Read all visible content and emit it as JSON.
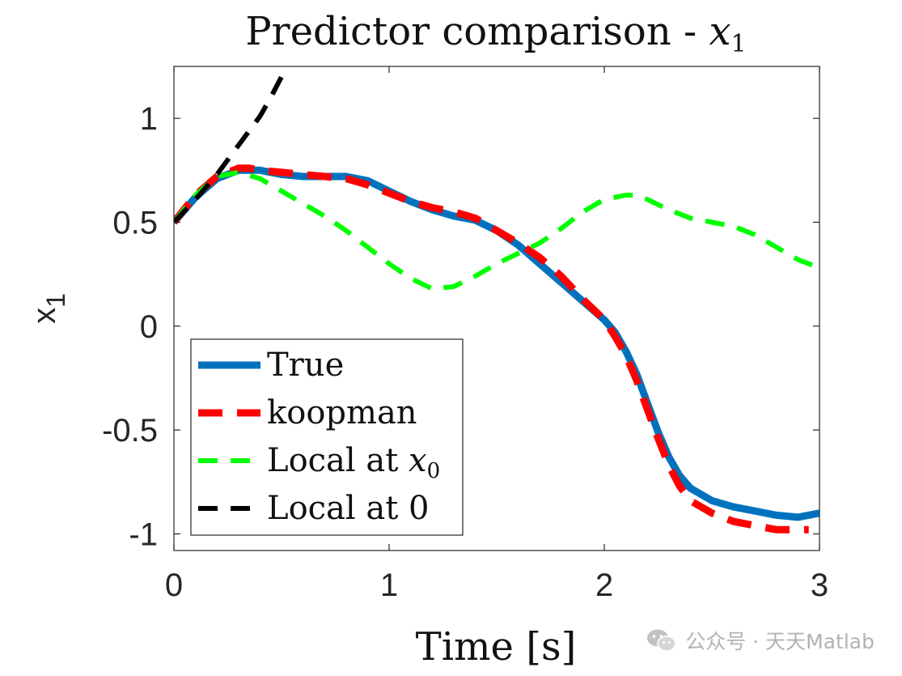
{
  "chart_data": {
    "type": "line",
    "title": "Predictor comparison - ",
    "title_math": "x",
    "title_math_sub": "1",
    "xlabel": "Time [s]",
    "ylabel": "x",
    "ylabel_sub": "1",
    "xlim": [
      0,
      3
    ],
    "ylim": [
      -1.08,
      1.25
    ],
    "xticks": [
      0,
      1,
      2,
      3
    ],
    "xtick_labels": [
      "0",
      "1",
      "2",
      "3"
    ],
    "yticks": [
      -1,
      -0.5,
      0,
      0.5,
      1
    ],
    "ytick_labels": [
      "-1",
      "-0.5",
      "0",
      "0.5",
      "1"
    ],
    "grid": false,
    "legend_position": "bottom-left",
    "series": [
      {
        "name": "True",
        "label": "True",
        "color": "#0072BD",
        "style": "solid",
        "x": [
          0,
          0.1,
          0.2,
          0.3,
          0.4,
          0.5,
          0.6,
          0.7,
          0.8,
          0.9,
          1.0,
          1.1,
          1.2,
          1.3,
          1.4,
          1.5,
          1.6,
          1.7,
          1.8,
          1.9,
          2.0,
          2.05,
          2.1,
          2.15,
          2.2,
          2.25,
          2.3,
          2.35,
          2.4,
          2.5,
          2.6,
          2.7,
          2.8,
          2.9,
          3.0
        ],
        "y": [
          0.5,
          0.62,
          0.71,
          0.75,
          0.75,
          0.73,
          0.72,
          0.72,
          0.72,
          0.7,
          0.65,
          0.6,
          0.56,
          0.53,
          0.51,
          0.46,
          0.39,
          0.3,
          0.21,
          0.12,
          0.03,
          -0.03,
          -0.12,
          -0.23,
          -0.37,
          -0.51,
          -0.63,
          -0.72,
          -0.78,
          -0.84,
          -0.87,
          -0.89,
          -0.91,
          -0.92,
          -0.9
        ]
      },
      {
        "name": "koopman",
        "label": "koopman",
        "color": "#FF0000",
        "style": "dashed",
        "x": [
          0,
          0.1,
          0.2,
          0.3,
          0.35,
          0.4,
          0.5,
          0.6,
          0.7,
          0.8,
          0.9,
          1.0,
          1.1,
          1.2,
          1.3,
          1.4,
          1.5,
          1.6,
          1.7,
          1.8,
          1.9,
          2.0,
          2.05,
          2.1,
          2.15,
          2.2,
          2.25,
          2.3,
          2.35,
          2.4,
          2.5,
          2.6,
          2.7,
          2.8,
          2.9,
          2.95
        ],
        "y": [
          0.5,
          0.63,
          0.72,
          0.76,
          0.76,
          0.75,
          0.74,
          0.73,
          0.72,
          0.71,
          0.68,
          0.64,
          0.6,
          0.57,
          0.55,
          0.52,
          0.46,
          0.4,
          0.33,
          0.24,
          0.13,
          0.03,
          -0.05,
          -0.14,
          -0.26,
          -0.4,
          -0.54,
          -0.67,
          -0.77,
          -0.84,
          -0.9,
          -0.94,
          -0.96,
          -0.98,
          -0.98,
          -0.98
        ]
      },
      {
        "name": "Local at x0",
        "label": "Local at ",
        "label_math": "x",
        "label_math_sub": "0",
        "color": "#00FF00",
        "style": "dashed",
        "x": [
          0,
          0.1,
          0.2,
          0.3,
          0.4,
          0.5,
          0.6,
          0.7,
          0.8,
          0.9,
          1.0,
          1.1,
          1.2,
          1.3,
          1.4,
          1.5,
          1.6,
          1.7,
          1.8,
          1.9,
          2.0,
          2.1,
          2.15,
          2.2,
          2.3,
          2.4,
          2.5,
          2.6,
          2.7,
          2.8,
          2.9,
          3.0
        ],
        "y": [
          0.5,
          0.63,
          0.72,
          0.74,
          0.71,
          0.65,
          0.59,
          0.53,
          0.46,
          0.38,
          0.3,
          0.23,
          0.18,
          0.19,
          0.24,
          0.3,
          0.35,
          0.4,
          0.47,
          0.55,
          0.61,
          0.63,
          0.63,
          0.61,
          0.56,
          0.52,
          0.5,
          0.48,
          0.44,
          0.38,
          0.32,
          0.28
        ]
      },
      {
        "name": "Local at 0",
        "label": "Local at 0",
        "color": "#000000",
        "style": "dashed",
        "x": [
          0,
          0.1,
          0.2,
          0.3,
          0.4,
          0.45,
          0.5
        ],
        "y": [
          0.5,
          0.61,
          0.73,
          0.87,
          1.01,
          1.1,
          1.2
        ]
      }
    ]
  },
  "watermark": {
    "text": "公众号 · 天天Matlab",
    "icon": "wechat-icon"
  }
}
